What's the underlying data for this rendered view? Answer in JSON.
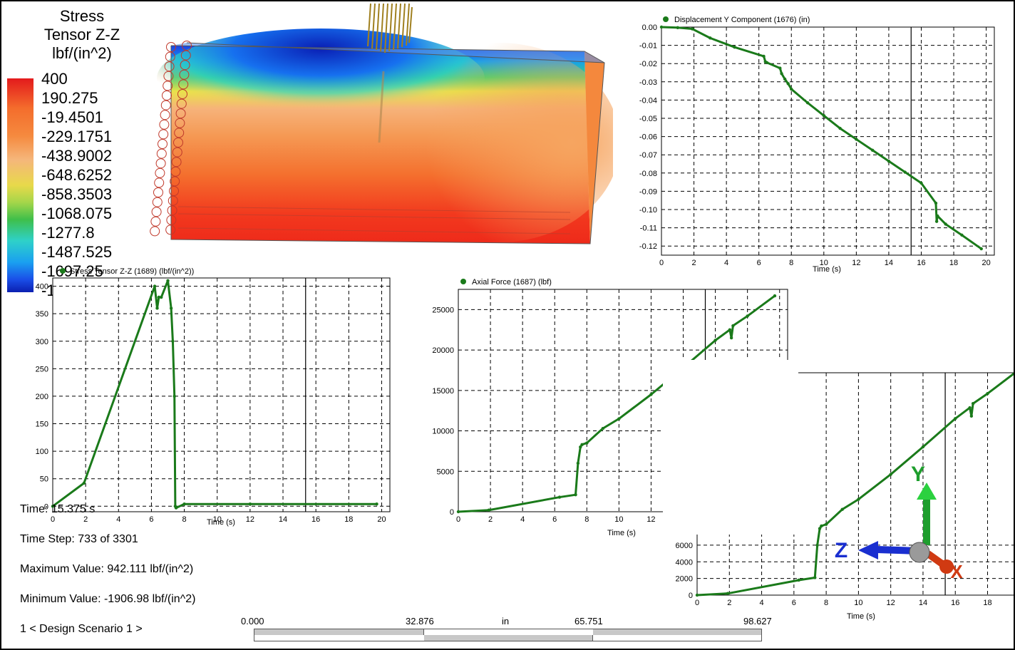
{
  "legend": {
    "title_lines": [
      "Stress",
      "Tensor Z-Z",
      "lbf/(in^2)"
    ],
    "values": [
      "400",
      "190.275",
      "-19.4501",
      "-229.1751",
      "-438.9002",
      "-648.6252",
      "-858.3503",
      "-1068.075",
      "-1277.8",
      "-1487.525",
      "-1697.25",
      "-1906.976"
    ]
  },
  "plots": {
    "disp_y": {
      "legend": "Displacement Y Component (1676) (in)",
      "xlabel": "Time (s)"
    },
    "stress": {
      "legend": "Stress Tensor Z-Z (1689) (lbf/(in^2))",
      "xlabel": "Time (s)"
    },
    "axial": {
      "legend": "Axial Force  (1687) (lbf)",
      "xlabel": "Time (s)"
    },
    "partial": {
      "xlabel": "Time (s)"
    }
  },
  "chart_data": [
    {
      "type": "line",
      "title": "Displacement Y Component (1676) (in)",
      "xlabel": "Time (s)",
      "ylabel": "",
      "xlim": [
        0,
        20.5
      ],
      "ylim": [
        -0.125,
        0
      ],
      "xticks": [
        "0",
        "2",
        "4",
        "6",
        "8",
        "10",
        "12",
        "14",
        "16",
        "18",
        "20"
      ],
      "yticks": [
        "0.00",
        "-0.01",
        "-0.02",
        "-0.03",
        "-0.04",
        "-0.05",
        "-0.06",
        "-0.07",
        "-0.08",
        "-0.09",
        "-0.10",
        "-0.11",
        "-0.12"
      ],
      "grid": true,
      "color": "#1a7a1a",
      "cursor_x": 15.375,
      "series": [
        {
          "x": [
            0,
            1.0,
            1.9,
            3.0,
            4.5,
            6.3,
            6.4,
            6.5,
            7.3,
            7.4,
            7.6,
            7.8,
            8.0,
            9.0,
            10.0,
            11.0,
            12.0,
            13.0,
            14.0,
            15.0,
            16.0,
            16.9,
            16.95,
            17.0,
            17.5,
            18.5,
            19.7
          ],
          "y": [
            0,
            -0.0003,
            -0.001,
            -0.006,
            -0.011,
            -0.016,
            -0.019,
            -0.0195,
            -0.0225,
            -0.0255,
            -0.0285,
            -0.031,
            -0.034,
            -0.0415,
            -0.0485,
            -0.0555,
            -0.0615,
            -0.0675,
            -0.0735,
            -0.0795,
            -0.0855,
            -0.0965,
            -0.1065,
            -0.1035,
            -0.108,
            -0.114,
            -0.1215
          ]
        }
      ]
    },
    {
      "type": "line",
      "title": "Stress Tensor Z-Z (1689) (lbf/(in^2))",
      "xlabel": "Time (s)",
      "ylabel": "",
      "xlim": [
        0,
        20.5
      ],
      "ylim": [
        -10,
        415
      ],
      "xticks": [
        "0",
        "2",
        "4",
        "6",
        "8",
        "10",
        "12",
        "14",
        "16",
        "18",
        "20"
      ],
      "yticks": [
        "0",
        "50",
        "100",
        "150",
        "200",
        "250",
        "300",
        "350",
        "400"
      ],
      "grid": true,
      "color": "#1a7a1a",
      "cursor_x": 15.375,
      "series": [
        {
          "x": [
            0,
            1.9,
            6.2,
            6.35,
            6.45,
            6.6,
            7.0,
            7.2,
            7.3,
            7.4,
            7.45,
            7.5,
            8.0,
            12.0,
            19.7
          ],
          "y": [
            0,
            42,
            400,
            360,
            380,
            380,
            410,
            360,
            300,
            200,
            0,
            -3,
            4,
            4,
            4
          ]
        }
      ]
    },
    {
      "type": "line",
      "title": "Axial Force  (1687) (lbf)",
      "xlabel": "Time (s)",
      "ylabel": "",
      "xlim": [
        0,
        20.5
      ],
      "ylim": [
        0,
        27500
      ],
      "xticks": [
        "0",
        "2",
        "4",
        "6",
        "8",
        "10",
        "12",
        "14",
        "16",
        "18",
        "20"
      ],
      "yticks": [
        "0",
        "5000",
        "10000",
        "15000",
        "20000",
        "25000"
      ],
      "grid": true,
      "color": "#1a7a1a",
      "cursor_x": 15.375,
      "series": [
        {
          "x": [
            0,
            1.9,
            6.3,
            7.3,
            7.45,
            7.6,
            7.7,
            8.0,
            9.0,
            10.0,
            12.0,
            14.0,
            16.0,
            16.9,
            17.0,
            17.1,
            18.0,
            19.7
          ],
          "y": [
            0,
            200,
            1800,
            2100,
            6000,
            8000,
            8300,
            8500,
            10300,
            11500,
            14500,
            17800,
            21200,
            22500,
            21500,
            23000,
            24200,
            26700
          ]
        }
      ]
    },
    {
      "type": "line",
      "title": "",
      "xlabel": "Time (s)",
      "ylabel": "",
      "xlim": [
        0,
        19.7
      ],
      "ylim": [
        0,
        26700
      ],
      "xticks": [
        "0",
        "2",
        "4",
        "6",
        "8",
        "10",
        "12",
        "14",
        "16",
        "18",
        "2"
      ],
      "yticks": [
        "0",
        "2000",
        "4000",
        "6000"
      ],
      "grid": true,
      "color": "#1a7a1a",
      "cursor_x": 15.375,
      "series": [
        {
          "x": [
            0,
            1.9,
            6.3,
            7.3,
            7.45,
            7.6,
            7.7,
            8.0,
            9.0,
            10.0,
            12.0,
            14.0,
            16.0,
            16.9,
            17.0,
            17.1,
            18.0,
            19.7
          ],
          "y": [
            0,
            200,
            1800,
            2100,
            6000,
            8000,
            8300,
            8500,
            10300,
            11500,
            14500,
            17800,
            21200,
            22500,
            21500,
            23000,
            24200,
            26700
          ]
        }
      ]
    }
  ],
  "axes_triad": {
    "y": "Y",
    "z": "Z",
    "x": "X"
  },
  "info": {
    "time": "Time: 15.375 s",
    "time_step": "Time Step:  733 of 3301",
    "max": "Maximum Value: 942.111 lbf/(in^2)",
    "min": "Minimum Value: -1906.98 lbf/(in^2)",
    "scenario": "1 < Design Scenario 1 >"
  },
  "scale": {
    "ticks": [
      "0.000",
      "32.876",
      "65.751",
      "98.627"
    ],
    "unit": "in"
  }
}
